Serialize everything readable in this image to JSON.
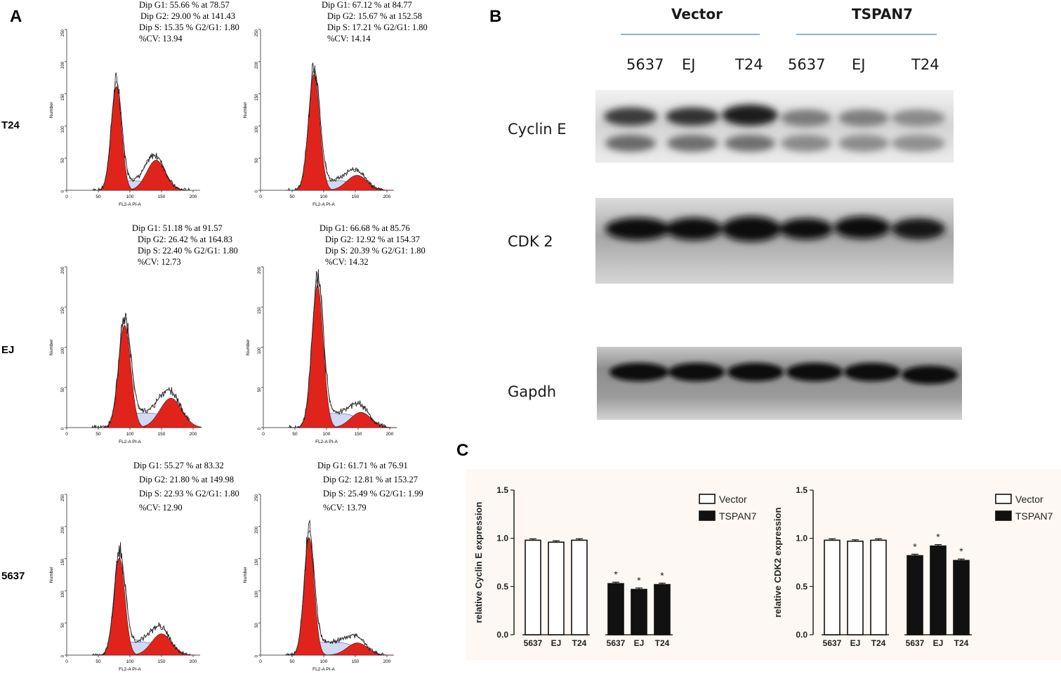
{
  "panels": {
    "a": "A",
    "b": "B",
    "c": "C"
  },
  "panel_a": {
    "rows": [
      "T24",
      "EJ",
      "5637"
    ],
    "axis_x_label": "FL2-A PI-A",
    "axis_y_label": "Number",
    "histograms": [
      {
        "row": "T24",
        "col": 0,
        "g1": "Dip G1: 55.66 % at 78.57",
        "g2": "Dip G2: 29.00 % at 141.43",
        "s": "Dip S: 15.35 %   G2/G1: 1.80",
        "cv": "%CV: 13.94",
        "g1_pos": 78.57,
        "g1_pct": 55.66,
        "g2_pos": 141.43,
        "g2_pct": 29.0,
        "s_pct": 15.35,
        "y_max": 250,
        "y_ticks": [
          0,
          50,
          100,
          150,
          200,
          250
        ],
        "x_ticks": [
          0,
          50,
          100,
          150,
          200
        ]
      },
      {
        "row": "T24",
        "col": 1,
        "g1": "Dip G1: 67.12 % at 84.77",
        "g2": "Dip G2: 15.67 % at 152.58",
        "s": "Dip S: 17.21 %   G2/G1: 1.80",
        "cv": "%CV: 14.14",
        "g1_pos": 84.77,
        "g1_pct": 67.12,
        "g2_pos": 152.58,
        "g2_pct": 15.67,
        "s_pct": 17.21,
        "y_max": 250,
        "y_ticks": [
          0,
          50,
          100,
          150,
          200,
          250
        ],
        "x_ticks": [
          0,
          50,
          100,
          150,
          200
        ]
      },
      {
        "row": "EJ",
        "col": 0,
        "g1": "Dip G1: 51.18 % at 91.57",
        "g2": "Dip G2: 26.42 % at 164.83",
        "s": "Dip S: 22.40 %   G2/G1: 1.80",
        "cv": "%CV: 12.73",
        "g1_pos": 91.57,
        "g1_pct": 51.18,
        "g2_pos": 164.83,
        "g2_pct": 26.42,
        "s_pct": 22.4,
        "y_max": 200,
        "y_ticks": [
          0,
          50,
          100,
          150,
          200
        ],
        "x_ticks": [
          0,
          50,
          100,
          150,
          200
        ]
      },
      {
        "row": "EJ",
        "col": 1,
        "g1": "Dip G1: 66.68 % at 85.76",
        "g2": "Dip G2: 12.92 % at 154.37",
        "s": "Dip S: 20.39 %   G2/G1: 1.80",
        "cv": "%CV: 14.32",
        "g1_pos": 85.76,
        "g1_pct": 66.68,
        "g2_pos": 154.37,
        "g2_pct": 12.92,
        "s_pct": 20.39,
        "y_max": 200,
        "y_ticks": [
          0,
          50,
          100,
          150,
          200
        ],
        "x_ticks": [
          0,
          50,
          100,
          150,
          200
        ]
      },
      {
        "row": "5637",
        "col": 0,
        "g1": "Dip G1: 55.27 % at 83.32",
        "g2": "Dip G2: 21.80 % at 149.98",
        "s": "Dip S: 22.93 %   G2/G1: 1.80",
        "cv": "%CV: 12.90",
        "g1_pos": 83.32,
        "g1_pct": 55.27,
        "g2_pos": 149.98,
        "g2_pct": 21.8,
        "s_pct": 22.93,
        "y_max": 250,
        "y_ticks": [
          0,
          50,
          100,
          150,
          200,
          250
        ],
        "x_ticks": [
          0,
          50,
          100,
          150,
          200
        ]
      },
      {
        "row": "5637",
        "col": 1,
        "g1": "Dip G1: 61.71 % at 76.91",
        "g2": "Dip G2: 12.81 % at 153.27",
        "s": "Dip S: 25.49 %   G2/G1: 1.99",
        "cv": "%CV: 13.79",
        "g1_pos": 76.91,
        "g1_pct": 61.71,
        "g2_pos": 153.27,
        "g2_pct": 12.81,
        "s_pct": 25.49,
        "y_max": 250,
        "y_ticks": [
          0,
          50,
          100,
          150,
          200,
          250
        ],
        "x_ticks": [
          0,
          50,
          100,
          150,
          200
        ]
      }
    ]
  },
  "panel_b": {
    "groups": [
      "Vector",
      "TSPAN7"
    ],
    "lanes": [
      "5637",
      "EJ",
      "T24",
      "5637",
      "EJ",
      "T24"
    ],
    "proteins": [
      "Cyclin E",
      "CDK 2",
      "Gapdh"
    ]
  },
  "chart_data": [
    {
      "type": "bar",
      "ylabel": "relative Cyclin E expression",
      "xlabel": "",
      "ylim": [
        0,
        1.5
      ],
      "y_ticks": [
        "0.0",
        "0.5",
        "1.0",
        "1.5"
      ],
      "categories": [
        "5637",
        "EJ",
        "T24",
        "5637",
        "EJ",
        "T24"
      ],
      "series": [
        {
          "name": "Vector",
          "color": "#ffffff",
          "values": [
            0.98,
            0.96,
            0.98,
            null,
            null,
            null
          ]
        },
        {
          "name": "TSPAN7",
          "color": "#111111",
          "values": [
            null,
            null,
            null,
            0.53,
            0.47,
            0.52
          ]
        }
      ],
      "significance": [
        "",
        "",
        "",
        "*",
        "*",
        "*"
      ],
      "legend": "top-right"
    },
    {
      "type": "bar",
      "ylabel": "relative CDK2 expression",
      "xlabel": "",
      "ylim": [
        0,
        1.5
      ],
      "y_ticks": [
        "0.0",
        "0.5",
        "1.0",
        "1.5"
      ],
      "categories": [
        "5637",
        "EJ",
        "T24",
        "5637",
        "EJ",
        "T24"
      ],
      "series": [
        {
          "name": "Vector",
          "color": "#ffffff",
          "values": [
            0.98,
            0.97,
            0.98,
            null,
            null,
            null
          ]
        },
        {
          "name": "TSPAN7",
          "color": "#111111",
          "values": [
            null,
            null,
            null,
            0.82,
            0.92,
            0.77
          ]
        }
      ],
      "significance": [
        "",
        "",
        "",
        "*",
        "*",
        "*"
      ],
      "legend": "top-right"
    }
  ]
}
